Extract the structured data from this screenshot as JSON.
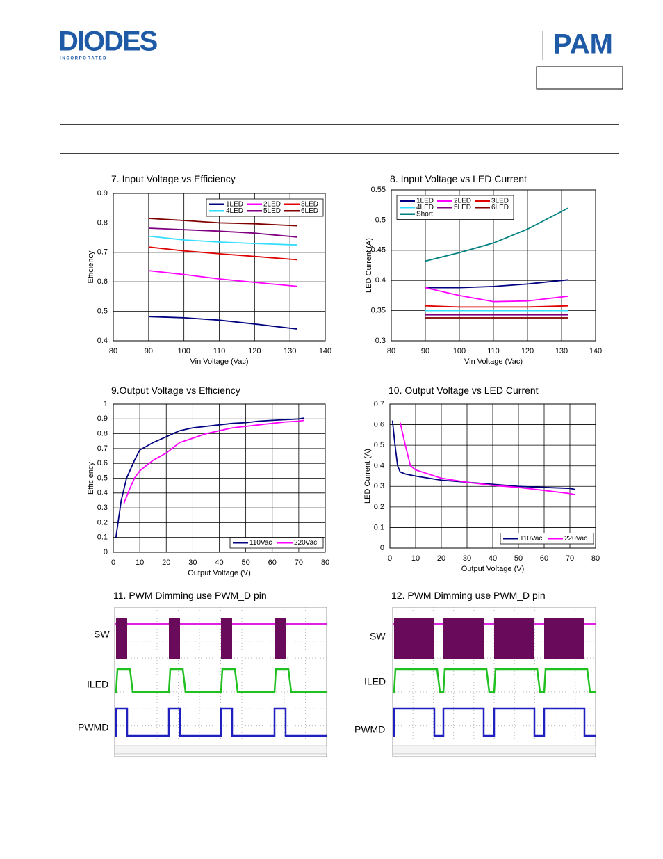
{
  "header": {
    "logo_left": "DIODES",
    "logo_left_sub": "I N C O R P O R A T E D",
    "logo_right": "PAM"
  },
  "chart_data": [
    {
      "type": "line",
      "title": "7. Input Voltage vs Efficiency",
      "x_label": "Vin Voltage (Vac)",
      "y_label": "Efficiency",
      "x": [
        90,
        100,
        110,
        120,
        132
      ],
      "xlim": [
        80,
        140
      ],
      "xticks": [
        80,
        90,
        100,
        110,
        120,
        130,
        140
      ],
      "ylim": [
        0.4,
        0.9
      ],
      "yticks": [
        0.4,
        0.5,
        0.6,
        0.7,
        0.8,
        0.9
      ],
      "grid": true,
      "legend": "upper right",
      "series": [
        {
          "name": "1LED",
          "color": "#000080",
          "values": [
            0.482,
            0.478,
            0.47,
            0.457,
            0.44
          ]
        },
        {
          "name": "2LED",
          "color": "#ff00ff",
          "values": [
            0.638,
            0.625,
            0.61,
            0.598,
            0.585
          ]
        },
        {
          "name": "3LED",
          "color": "#e00000",
          "values": [
            0.718,
            0.705,
            0.695,
            0.686,
            0.675
          ]
        },
        {
          "name": "4LED",
          "color": "#33ddff",
          "values": [
            0.755,
            0.742,
            0.735,
            0.73,
            0.725
          ]
        },
        {
          "name": "5LED",
          "color": "#800080",
          "values": [
            0.782,
            0.777,
            0.772,
            0.765,
            0.752
          ]
        },
        {
          "name": "6LED",
          "color": "#800000",
          "values": [
            0.815,
            0.808,
            0.8,
            0.797,
            0.79
          ]
        }
      ]
    },
    {
      "type": "line",
      "title": "8. Input Voltage vs LED Current",
      "x_label": "Vin Voltage (Vac)",
      "y_label": "LED Current (A)",
      "x": [
        90,
        100,
        110,
        120,
        132
      ],
      "xlim": [
        80,
        140
      ],
      "xticks": [
        80,
        90,
        100,
        110,
        120,
        130,
        140
      ],
      "ylim": [
        0.3,
        0.55
      ],
      "yticks": [
        0.3,
        0.35,
        0.4,
        0.45,
        0.5,
        0.55
      ],
      "grid": true,
      "legend": "upper left",
      "series": [
        {
          "name": "1LED",
          "color": "#000080",
          "values": [
            0.388,
            0.388,
            0.39,
            0.394,
            0.401
          ]
        },
        {
          "name": "2LED",
          "color": "#ff00ff",
          "values": [
            0.388,
            0.375,
            0.365,
            0.366,
            0.374
          ]
        },
        {
          "name": "3LED",
          "color": "#e00000",
          "values": [
            0.358,
            0.356,
            0.356,
            0.356,
            0.358
          ]
        },
        {
          "name": "4LED",
          "color": "#33ddff",
          "values": [
            0.35,
            0.35,
            0.35,
            0.35,
            0.35
          ]
        },
        {
          "name": "5LED",
          "color": "#800080",
          "values": [
            0.343,
            0.343,
            0.343,
            0.343,
            0.343
          ]
        },
        {
          "name": "6LED",
          "color": "#800000",
          "values": [
            0.338,
            0.338,
            0.338,
            0.338,
            0.338
          ]
        },
        {
          "name": "Short",
          "color": "#008080",
          "values": [
            0.432,
            0.446,
            0.462,
            0.485,
            0.52
          ]
        }
      ]
    },
    {
      "type": "line",
      "title": "9.Output Voltage vs Efficiency",
      "x_label": "Output Voltage (V)",
      "y_label": "Efficiency",
      "xlim": [
        0,
        80
      ],
      "xticks": [
        0,
        10,
        20,
        30,
        40,
        50,
        60,
        70,
        80
      ],
      "ylim": [
        0,
        1
      ],
      "yticks": [
        0,
        0.1,
        0.2,
        0.3,
        0.4,
        0.5,
        0.6,
        0.7,
        0.8,
        0.9,
        1
      ],
      "grid": true,
      "legend": "lower right",
      "series": [
        {
          "name": "110Vac",
          "color": "#000080",
          "x": [
            1,
            3,
            5,
            8,
            10,
            15,
            20,
            25,
            30,
            35,
            40,
            45,
            50,
            55,
            60,
            65,
            70,
            72
          ],
          "values": [
            0.1,
            0.35,
            0.5,
            0.62,
            0.69,
            0.74,
            0.78,
            0.82,
            0.84,
            0.85,
            0.86,
            0.87,
            0.875,
            0.885,
            0.89,
            0.895,
            0.9,
            0.905
          ]
        },
        {
          "name": "220Vac",
          "color": "#ff00ff",
          "x": [
            4,
            6,
            8,
            10,
            15,
            20,
            25,
            30,
            35,
            40,
            45,
            50,
            55,
            60,
            65,
            70,
            72
          ],
          "values": [
            0.33,
            0.42,
            0.5,
            0.55,
            0.62,
            0.67,
            0.74,
            0.77,
            0.8,
            0.82,
            0.84,
            0.85,
            0.86,
            0.87,
            0.88,
            0.885,
            0.89
          ]
        }
      ]
    },
    {
      "type": "line",
      "title": "10. Output Voltage vs LED Current",
      "x_label": "Output Voltage (V)",
      "y_label": "LED Current (A)",
      "xlim": [
        0,
        80
      ],
      "xticks": [
        0,
        10,
        20,
        30,
        40,
        50,
        60,
        70,
        80
      ],
      "ylim": [
        0,
        0.7
      ],
      "yticks": [
        0,
        0.1,
        0.2,
        0.3,
        0.4,
        0.5,
        0.6,
        0.7
      ],
      "grid": true,
      "legend": "lower right",
      "series": [
        {
          "name": "110Vac",
          "color": "#000080",
          "x": [
            1,
            2,
            3,
            4,
            6,
            10,
            20,
            30,
            40,
            50,
            60,
            70,
            72
          ],
          "values": [
            0.62,
            0.5,
            0.4,
            0.37,
            0.36,
            0.35,
            0.33,
            0.32,
            0.31,
            0.3,
            0.295,
            0.29,
            0.285
          ]
        },
        {
          "name": "220Vac",
          "color": "#ff00ff",
          "x": [
            4,
            6,
            8,
            10,
            20,
            30,
            40,
            50,
            60,
            70,
            72
          ],
          "values": [
            0.61,
            0.5,
            0.4,
            0.38,
            0.34,
            0.32,
            0.305,
            0.295,
            0.28,
            0.265,
            0.26
          ]
        }
      ]
    }
  ],
  "scopes": [
    {
      "title": "11. PWM Dimming use PWM_D pin",
      "channels": [
        "SW",
        "ILED",
        "PWMD"
      ]
    },
    {
      "title": "12. PWM Dimming use PWM_D pin",
      "channels": [
        "SW",
        "ILED",
        "PWMD"
      ]
    }
  ]
}
